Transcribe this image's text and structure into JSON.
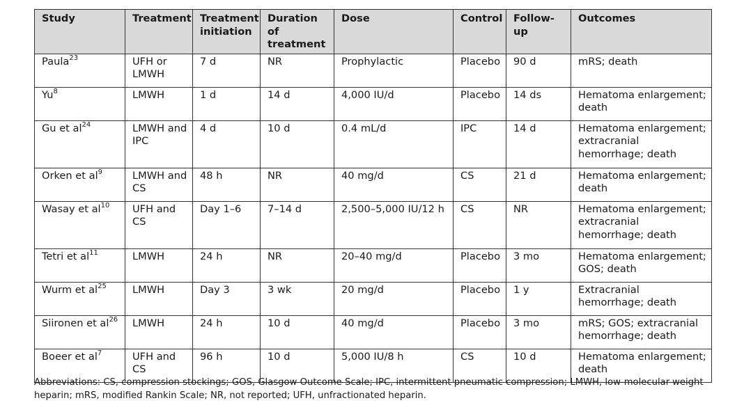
{
  "columns": [
    "Study",
    "Treatment",
    "Treatment initiation",
    "Duration of treatment",
    "Dose",
    "Control",
    "Follow-up",
    "Outcomes"
  ],
  "rows": [
    {
      "study": "Paula",
      "ref": "23",
      "treatment": "UFH or LMWH",
      "initiation": "7 d",
      "duration": "NR",
      "dose": "Prophylactic",
      "control": "Placebo",
      "followup": "90 d",
      "outcomes": "mRS; death"
    },
    {
      "study": "Yu",
      "ref": "8",
      "treatment": "LMWH",
      "initiation": "1 d",
      "duration": "14 d",
      "dose": "4,000 IU/d",
      "control": "Placebo",
      "followup": "14 ds",
      "outcomes": "Hematoma enlargement; death"
    },
    {
      "study": "Gu et al",
      "ref": "24",
      "treatment": "LMWH and IPC",
      "initiation": "4 d",
      "duration": "10 d",
      "dose": "0.4 mL/d",
      "control": "IPC",
      "followup": "14 d",
      "outcomes": "Hematoma enlargement; extracranial hemorrhage; death"
    },
    {
      "study": "Orken et al",
      "ref": "9",
      "treatment": "LMWH and CS",
      "initiation": "48 h",
      "duration": "NR",
      "dose": "40 mg/d",
      "control": "CS",
      "followup": "21 d",
      "outcomes": "Hematoma enlargement; death"
    },
    {
      "study": "Wasay et al",
      "ref": "10",
      "treatment": "UFH and CS",
      "initiation": "Day 1–6",
      "duration": "7–14 d",
      "dose": "2,500–5,000 IU/12 h",
      "control": "CS",
      "followup": "NR",
      "outcomes": "Hematoma enlargement; extracranial hemorrhage; death"
    },
    {
      "study": "Tetri et al",
      "ref": "11",
      "treatment": "LMWH",
      "initiation": "24 h",
      "duration": "NR",
      "dose": "20–40 mg/d",
      "control": "Placebo",
      "followup": "3 mo",
      "outcomes": "Hematoma enlargement; GOS; death"
    },
    {
      "study": "Wurm et al",
      "ref": "25",
      "treatment": "LMWH",
      "initiation": "Day 3",
      "duration": "3 wk",
      "dose": "20 mg/d",
      "control": "Placebo",
      "followup": "1 y",
      "outcomes": "Extracranial hemorrhage; death"
    },
    {
      "study": "Siironen et al",
      "ref": "26",
      "treatment": "LMWH",
      "initiation": "24 h",
      "duration": "10 d",
      "dose": "40 mg/d",
      "control": "Placebo",
      "followup": "3 mo",
      "outcomes": "mRS; GOS; extracranial hemorrhage; death"
    },
    {
      "study": "Boeer et al",
      "ref": "7",
      "treatment": "UFH and CS",
      "initiation": "96 h",
      "duration": "10 d",
      "dose": "5,000 IU/8 h",
      "control": "CS",
      "followup": "10 d",
      "outcomes": "Hematoma enlargement; death"
    }
  ],
  "footnote": "Abbreviations: CS, compression stockings; GOS, Glasgow Outcome Scale; IPC, intermittent pneumatic compression; LMWH, low-molecular-weight heparin; mRS, modified Rankin Scale; NR, not reported; UFH, unfractionated heparin."
}
